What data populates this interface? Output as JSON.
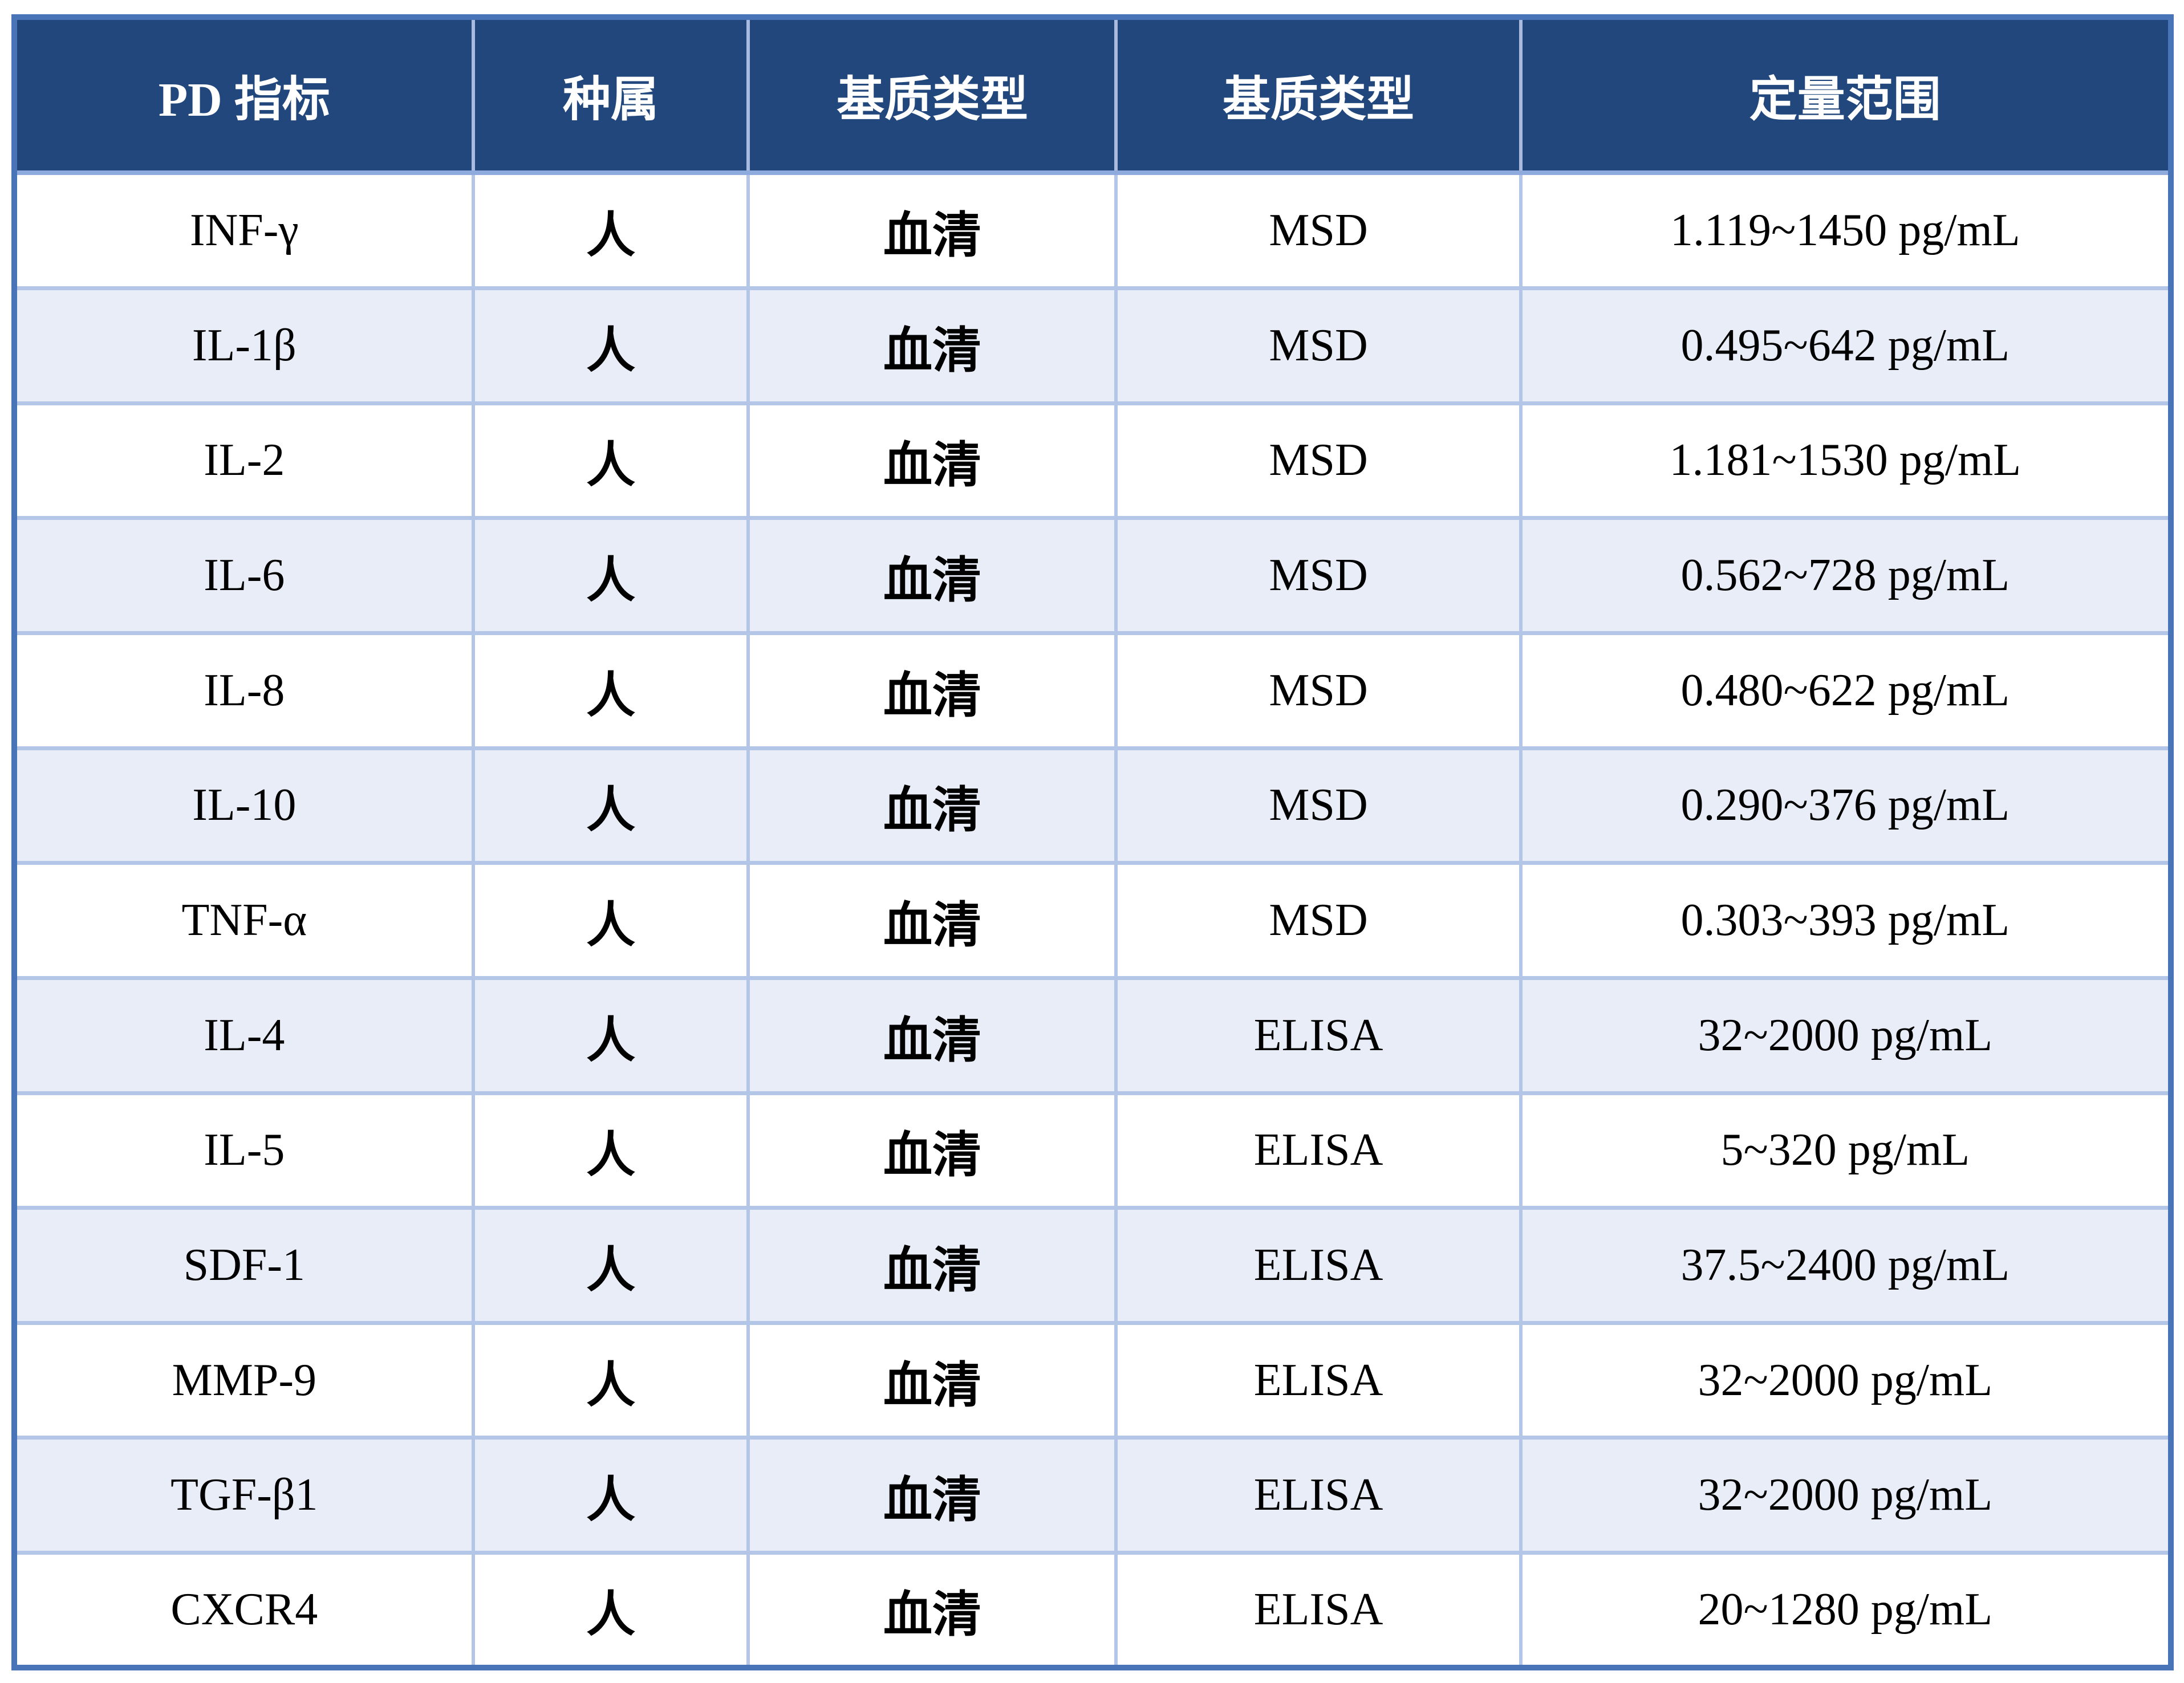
{
  "table": {
    "headers": [
      "PD 指标",
      "种属",
      "基质类型",
      "基质类型",
      "定量范围"
    ],
    "column_names": [
      "indicator",
      "species",
      "matrix-type",
      "matrix-type-2",
      "quant-range"
    ],
    "rows": [
      [
        "INF-γ",
        "人",
        "血清",
        "MSD",
        "1.119~1450 pg/mL"
      ],
      [
        "IL-1β",
        "人",
        "血清",
        "MSD",
        "0.495~642 pg/mL"
      ],
      [
        "IL-2",
        "人",
        "血清",
        "MSD",
        "1.181~1530 pg/mL"
      ],
      [
        "IL-6",
        "人",
        "血清",
        "MSD",
        "0.562~728 pg/mL"
      ],
      [
        "IL-8",
        "人",
        "血清",
        "MSD",
        "0.480~622 pg/mL"
      ],
      [
        "IL-10",
        "人",
        "血清",
        "MSD",
        "0.290~376 pg/mL"
      ],
      [
        "TNF-α",
        "人",
        "血清",
        "MSD",
        "0.303~393 pg/mL"
      ],
      [
        "IL-4",
        "人",
        "血清",
        "ELISA",
        "32~2000 pg/mL"
      ],
      [
        "IL-5",
        "人",
        "血清",
        "ELISA",
        "5~320 pg/mL"
      ],
      [
        "SDF-1",
        "人",
        "血清",
        "ELISA",
        "37.5~2400 pg/mL"
      ],
      [
        "MMP-9",
        "人",
        "血清",
        "ELISA",
        "32~2000 pg/mL"
      ],
      [
        "TGF-β1",
        "人",
        "血清",
        "ELISA",
        "32~2000 pg/mL"
      ],
      [
        "CXCR4",
        "人",
        "血清",
        "ELISA",
        "20~1280 pg/mL"
      ]
    ]
  },
  "colors": {
    "header_bg": "#21477C",
    "header_text": "#FFFFFF",
    "outer_border": "#4A74B8",
    "grid_line": "#B4C6E7",
    "header_underline": "#8FAADC",
    "stripe_bg": "#E9EDF7",
    "body_text": "#000000",
    "page_bg": "#FFFFFF"
  }
}
